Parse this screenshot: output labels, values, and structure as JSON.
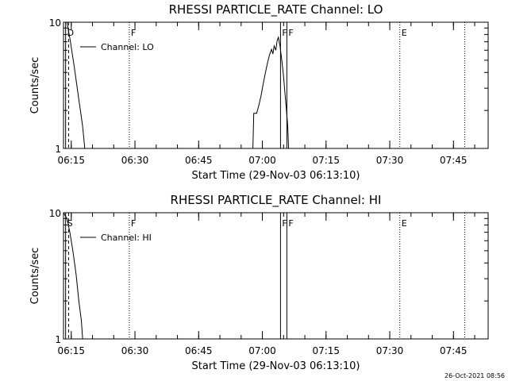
{
  "chart_data": [
    {
      "type": "line",
      "title": "RHESSI PARTICLE_RATE Channel: LO",
      "xlabel": "Start Time (29-Nov-03 06:13:10)",
      "ylabel": "Counts/sec",
      "x_unit": "minutes after 06:13:10",
      "x_tick_labels": [
        "06:15",
        "06:30",
        "06:45",
        "07:00",
        "07:15",
        "07:30",
        "07:45"
      ],
      "y_tick_labels": [
        "1",
        "10"
      ],
      "y_scale": "log",
      "ylim": [
        1,
        10
      ],
      "legend": {
        "label": "Channel: LO",
        "placement": "top-left"
      },
      "series": [
        {
          "name": "Channel: LO",
          "points": [
            [
              0,
              10
            ],
            [
              0.8,
              10
            ],
            [
              1.5,
              7.5
            ],
            [
              2.5,
              4.5
            ],
            [
              3.5,
              2.6
            ],
            [
              4.5,
              1.5
            ],
            [
              5.0,
              1.0
            ],
            [
              44.6,
              1.0
            ],
            [
              44.8,
              1.9
            ],
            [
              45.5,
              1.9
            ],
            [
              46.0,
              2.2
            ],
            [
              46.5,
              2.6
            ],
            [
              47.0,
              3.2
            ],
            [
              47.5,
              3.9
            ],
            [
              48.0,
              4.7
            ],
            [
              48.5,
              5.5
            ],
            [
              49.0,
              6.1
            ],
            [
              49.3,
              5.6
            ],
            [
              49.6,
              6.5
            ],
            [
              50.0,
              6.0
            ],
            [
              50.3,
              7.1
            ],
            [
              50.6,
              7.6
            ],
            [
              51.0,
              6.4
            ],
            [
              51.4,
              5.0
            ],
            [
              51.8,
              3.8
            ],
            [
              52.2,
              2.6
            ],
            [
              52.5,
              2.0
            ],
            [
              52.8,
              1.5
            ],
            [
              53.0,
              1.0
            ]
          ]
        }
      ],
      "flags": [
        {
          "label": "D",
          "minute": 0.5,
          "style": "solid"
        },
        {
          "label": "",
          "minute": 1.2,
          "style": "dashed"
        },
        {
          "label": "F",
          "minute": 15.5,
          "style": "dotted"
        },
        {
          "label": "F",
          "minute": 51.1,
          "style": "solid"
        },
        {
          "label": "F",
          "minute": 52.6,
          "style": "solid"
        },
        {
          "label": "E",
          "minute": 79.2,
          "style": "dotted"
        },
        {
          "label": "",
          "minute": 94.5,
          "style": "dotted"
        }
      ]
    },
    {
      "type": "line",
      "title": "RHESSI PARTICLE_RATE Channel: HI",
      "xlabel": "Start Time (29-Nov-03 06:13:10)",
      "ylabel": "Counts/sec",
      "x_unit": "minutes after 06:13:10",
      "x_tick_labels": [
        "06:15",
        "06:30",
        "06:45",
        "07:00",
        "07:15",
        "07:30",
        "07:45"
      ],
      "y_tick_labels": [
        "1",
        "10"
      ],
      "y_scale": "log",
      "ylim": [
        1,
        10
      ],
      "legend": {
        "label": "Channel: HI",
        "placement": "top-left"
      },
      "series": [
        {
          "name": "Channel: HI",
          "points": [
            [
              0,
              10
            ],
            [
              0.8,
              9.0
            ],
            [
              1.5,
              7.0
            ],
            [
              2.2,
              5.0
            ],
            [
              3.0,
              3.2
            ],
            [
              3.6,
              2.0
            ],
            [
              4.2,
              1.4
            ],
            [
              4.5,
              1.0
            ]
          ]
        }
      ],
      "flags": [
        {
          "label": "S",
          "minute": 0.5,
          "style": "solid"
        },
        {
          "label": "",
          "minute": 1.2,
          "style": "dashed"
        },
        {
          "label": "F",
          "minute": 15.5,
          "style": "dotted"
        },
        {
          "label": "F",
          "minute": 51.1,
          "style": "solid"
        },
        {
          "label": "F",
          "minute": 52.6,
          "style": "solid"
        },
        {
          "label": "E",
          "minute": 79.2,
          "style": "dotted"
        },
        {
          "label": "",
          "minute": 94.5,
          "style": "dotted"
        }
      ]
    }
  ],
  "footer": {
    "timestamp": "26-Oct-2021 08:56"
  }
}
